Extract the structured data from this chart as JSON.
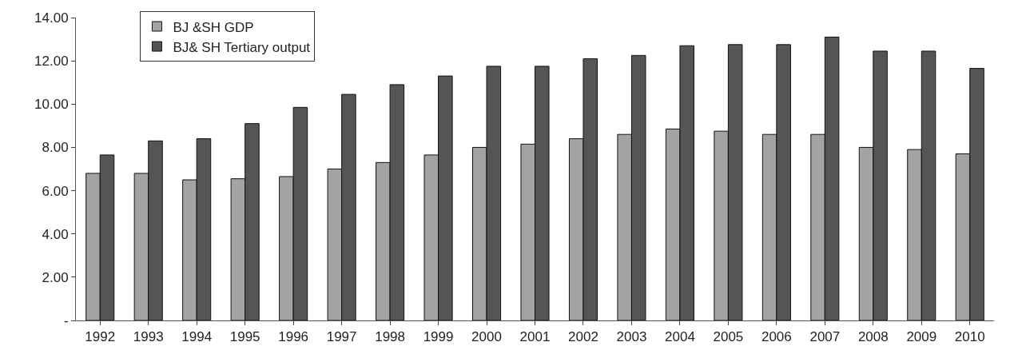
{
  "chart_data": {
    "type": "bar",
    "categories": [
      "1992",
      "1993",
      "1994",
      "1995",
      "1996",
      "1997",
      "1998",
      "1999",
      "2000",
      "2001",
      "2002",
      "2003",
      "2004",
      "2005",
      "2006",
      "2007",
      "2008",
      "2009",
      "2010"
    ],
    "series": [
      {
        "name": "BJ &SH GDP",
        "color": "#a3a3a3",
        "values": [
          6.8,
          6.8,
          6.5,
          6.55,
          6.65,
          7.0,
          7.3,
          7.65,
          8.0,
          8.15,
          8.4,
          8.6,
          8.85,
          8.75,
          8.6,
          8.6,
          8.0,
          7.9,
          7.7
        ]
      },
      {
        "name": "BJ& SH Tertiary output",
        "color": "#555555",
        "values": [
          7.65,
          8.3,
          8.4,
          9.1,
          9.85,
          10.45,
          10.9,
          11.3,
          11.75,
          11.75,
          12.1,
          12.25,
          12.7,
          12.75,
          12.75,
          13.1,
          12.45,
          12.45,
          11.65
        ]
      }
    ],
    "ylim": [
      0,
      14
    ],
    "yticks": [
      {
        "value": 0,
        "label": "-"
      },
      {
        "value": 2,
        "label": "2.00"
      },
      {
        "value": 4,
        "label": "4.00"
      },
      {
        "value": 6,
        "label": "6.00"
      },
      {
        "value": 8,
        "label": "8.00"
      },
      {
        "value": 10,
        "label": "10.00"
      },
      {
        "value": 12,
        "label": "12.00"
      },
      {
        "value": 14,
        "label": "14.00"
      }
    ],
    "legend": "top left"
  }
}
